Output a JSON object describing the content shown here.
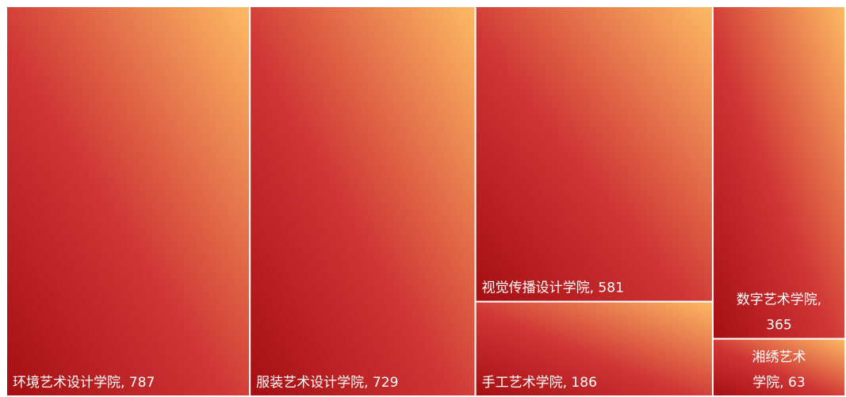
{
  "chart_data": {
    "type": "treemap",
    "title": "",
    "items": [
      {
        "label": "环境艺术设计学院, 787",
        "name": "环境艺术设计学院",
        "value": 787
      },
      {
        "label": "服装艺术设计学院, 729",
        "name": "服装艺术设计学院",
        "value": 729
      },
      {
        "label": "视觉传播设计学院, 581",
        "name": "视觉传播设计学院",
        "value": 581
      },
      {
        "label": "手工艺术学院, 186",
        "name": "手工艺术学院",
        "value": 186
      },
      {
        "label": "数字艺术学院, 365",
        "name": "数字艺术学院",
        "value": 365
      },
      {
        "label": "湘绣艺术学院, 63",
        "name": "湘绣艺术学院",
        "value": 63
      }
    ],
    "colors": {
      "gradient_dark": "#a50f12",
      "gradient_mid": "#cf3535",
      "gradient_light": "#fdbb64",
      "border": "#ffffff"
    }
  }
}
